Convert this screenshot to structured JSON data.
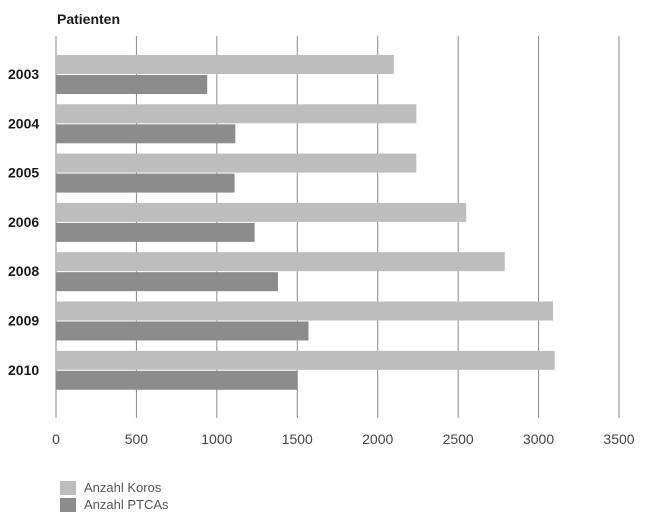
{
  "chart_data": {
    "type": "bar",
    "orientation": "horizontal",
    "ylabel": "Patienten",
    "categories": [
      "2003",
      "2004",
      "2005",
      "2006",
      "2008",
      "2009",
      "2010"
    ],
    "series": [
      {
        "name": "Anzahl Koros",
        "color": "#bdbdbd",
        "values": [
          2100,
          2240,
          2240,
          2550,
          2790,
          3090,
          3100
        ]
      },
      {
        "name": "Anzahl PTCAs",
        "color": "#8c8c8c",
        "values": [
          940,
          1115,
          1110,
          1235,
          1380,
          1570,
          1500
        ]
      }
    ],
    "xlim": [
      0,
      3500
    ],
    "xticks": [
      0,
      500,
      1000,
      1500,
      2000,
      2500,
      3000,
      3500
    ],
    "grid": true,
    "legend_position": "bottom-left"
  }
}
